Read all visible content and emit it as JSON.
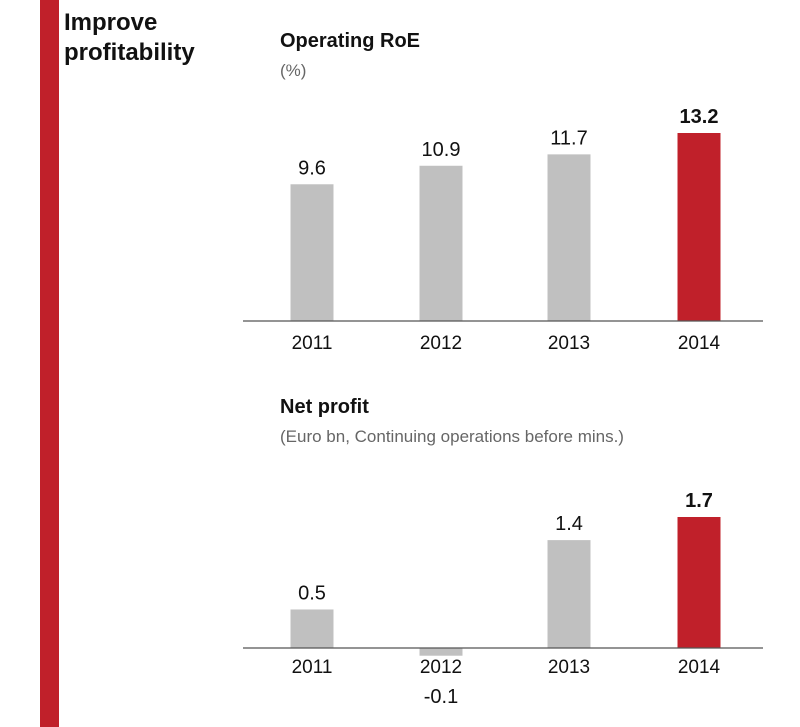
{
  "section": {
    "title_line1": "Improve",
    "title_line2": "profitability"
  },
  "colors": {
    "accent": "#c0202a",
    "bar": "#c0c0c0",
    "axis": "#555555"
  },
  "chart_data": [
    {
      "type": "bar",
      "title": "Operating RoE",
      "subtitle": "(%)",
      "categories": [
        "2011",
        "2012",
        "2013",
        "2014"
      ],
      "values": [
        9.6,
        10.9,
        11.7,
        13.2
      ],
      "value_labels": [
        "9.6",
        "10.9",
        "11.7",
        "13.2"
      ],
      "highlight_index": 3,
      "xlabel": "",
      "ylabel": "",
      "ylim": [
        0,
        13.2
      ],
      "grid": false
    },
    {
      "type": "bar",
      "title": "Net profit",
      "subtitle": "(Euro bn, Continuing operations before mins.)",
      "categories": [
        "2011",
        "2012",
        "2013",
        "2014"
      ],
      "values": [
        0.5,
        -0.1,
        1.4,
        1.7
      ],
      "value_labels": [
        "0.5",
        "-0.1",
        "1.4",
        "1.7"
      ],
      "highlight_index": 3,
      "xlabel": "",
      "ylabel": "",
      "ylim": [
        -0.1,
        1.7
      ],
      "grid": false
    }
  ]
}
